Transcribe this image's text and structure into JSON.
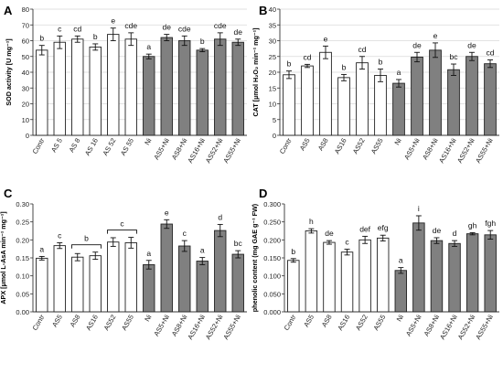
{
  "colors": {
    "open": "#ffffff",
    "filled": "#808080",
    "stroke": "#222222",
    "grid": "#d9d9d9"
  },
  "chart_data": [
    {
      "type": "bar",
      "panel_label": "A",
      "ylabel": "SOD activity [U mg⁻¹]",
      "ylim": [
        0,
        80
      ],
      "yticks": [
        0,
        10,
        20,
        30,
        40,
        50,
        60,
        70,
        80
      ],
      "ytick_labels": [
        "0",
        "10",
        "20",
        "30",
        "40",
        "50",
        "60",
        "70",
        "80"
      ],
      "grid": true,
      "categories": [
        "Contr",
        "AS 5",
        "AS 8",
        "AS 16",
        "AS 52",
        "AS 55",
        "Ni",
        "AS5+Ni",
        "AS8+Ni",
        "AS16+Ni",
        "AS52+Ni",
        "AS55+Ni"
      ],
      "fill": [
        "open",
        "open",
        "open",
        "open",
        "open",
        "open",
        "filled",
        "filled",
        "filled",
        "filled",
        "filled",
        "filled"
      ],
      "values": [
        54,
        59,
        61,
        56,
        64,
        61,
        50,
        62,
        60,
        54,
        61,
        59
      ],
      "errors": [
        3,
        4,
        2,
        2,
        4,
        4,
        1.5,
        2,
        3,
        1,
        4,
        2
      ],
      "letters": [
        "b",
        "c",
        "cd",
        "b",
        "e",
        "cde",
        "a",
        "de",
        "cde",
        "b",
        "cde",
        "de"
      ]
    },
    {
      "type": "bar",
      "panel_label": "B",
      "ylabel": "CAT [µmol H₂O₂ min⁻¹ mg⁻¹]",
      "ylim": [
        0,
        40
      ],
      "yticks": [
        0,
        5,
        10,
        15,
        20,
        25,
        30,
        35,
        40
      ],
      "ytick_labels": [
        "0",
        "5",
        "10",
        "15",
        "20",
        "25",
        "30",
        "35",
        "40"
      ],
      "grid": true,
      "categories": [
        "Contr",
        "AS5",
        "AS8",
        "AS16",
        "AS52",
        "AS55",
        "Ni",
        "AS5+Ni",
        "AS8+Ni",
        "AS16+Ni",
        "AS52+Ni",
        "AS55+Ni"
      ],
      "fill": [
        "open",
        "open",
        "open",
        "open",
        "open",
        "open",
        "filled",
        "filled",
        "filled",
        "filled",
        "filled",
        "filled"
      ],
      "values": [
        19.2,
        22,
        26.3,
        18.3,
        23,
        19,
        16.5,
        24.8,
        27,
        20.8,
        25,
        22.7
      ],
      "errors": [
        1.2,
        0.5,
        2,
        1,
        2,
        2,
        1.2,
        1.5,
        2.3,
        1.8,
        1.3,
        1.2
      ],
      "letters": [
        "b",
        "cd",
        "e",
        "b",
        "cd",
        "b",
        "a",
        "de",
        "e",
        "bc",
        "de",
        "cd"
      ]
    },
    {
      "type": "bar",
      "panel_label": "C",
      "ylabel": "APX [µmol L-AsA min⁻¹ mg⁻¹]",
      "ylim": [
        0,
        0.3
      ],
      "yticks": [
        0,
        0.05,
        0.1,
        0.15,
        0.2,
        0.25,
        0.3
      ],
      "ytick_labels": [
        "0.00",
        "0.05",
        "0.10",
        "0.15",
        "0.20",
        "0.25",
        "0.30"
      ],
      "grid": false,
      "categories": [
        "Contr",
        "AS5",
        "AS8",
        "AS16",
        "AS52",
        "AS55",
        "Ni",
        "AS5+Ni",
        "AS8+Ni",
        "AS16+Ni",
        "AS52+Ni",
        "AS55+Ni"
      ],
      "fill": [
        "open",
        "open",
        "open",
        "open",
        "open",
        "open",
        "filled",
        "filled",
        "filled",
        "filled",
        "filled",
        "filled"
      ],
      "values": [
        0.149,
        0.184,
        0.152,
        0.156,
        0.194,
        0.192,
        0.131,
        0.244,
        0.183,
        0.141,
        0.226,
        0.16
      ],
      "errors": [
        0.005,
        0.008,
        0.01,
        0.01,
        0.012,
        0.015,
        0.012,
        0.012,
        0.015,
        0.01,
        0.017,
        0.01
      ],
      "letters": [
        "a",
        "c",
        "",
        "",
        "",
        "",
        "a",
        "e",
        "c",
        "a",
        "d",
        "bc"
      ],
      "brackets": [
        {
          "from": 2,
          "to": 3,
          "label": "b"
        },
        {
          "from": 4,
          "to": 5,
          "label": "c"
        }
      ]
    },
    {
      "type": "bar",
      "panel_label": "D",
      "ylabel": "phenolic content (mg GAE g⁻¹ FW)",
      "ylim": [
        0,
        0.3
      ],
      "yticks": [
        0,
        0.05,
        0.1,
        0.15,
        0.2,
        0.25,
        0.3
      ],
      "ytick_labels": [
        "0.000",
        "0.050",
        "0.100",
        "0.150",
        "0.200",
        "0.250",
        "0.300"
      ],
      "grid": false,
      "categories": [
        "Contr",
        "AS5",
        "AS8",
        "AS16",
        "AS52",
        "AS55",
        "Ni",
        "AS5+Ni",
        "AS8+Ni",
        "AS16+Ni",
        "AS52+Ni",
        "AS55+Ni"
      ],
      "fill": [
        "open",
        "open",
        "open",
        "open",
        "open",
        "open",
        "filled",
        "filled",
        "filled",
        "filled",
        "filled",
        "filled"
      ],
      "values": [
        0.143,
        0.225,
        0.193,
        0.166,
        0.2,
        0.205,
        0.115,
        0.247,
        0.198,
        0.19,
        0.217,
        0.214
      ],
      "errors": [
        0.005,
        0.006,
        0.005,
        0.008,
        0.01,
        0.008,
        0.008,
        0.02,
        0.008,
        0.008,
        0.003,
        0.012
      ],
      "letters": [
        "b",
        "h",
        "de",
        "c",
        "def",
        "efg",
        "a",
        "i",
        "de",
        "d",
        "gh",
        "fgh"
      ]
    }
  ]
}
